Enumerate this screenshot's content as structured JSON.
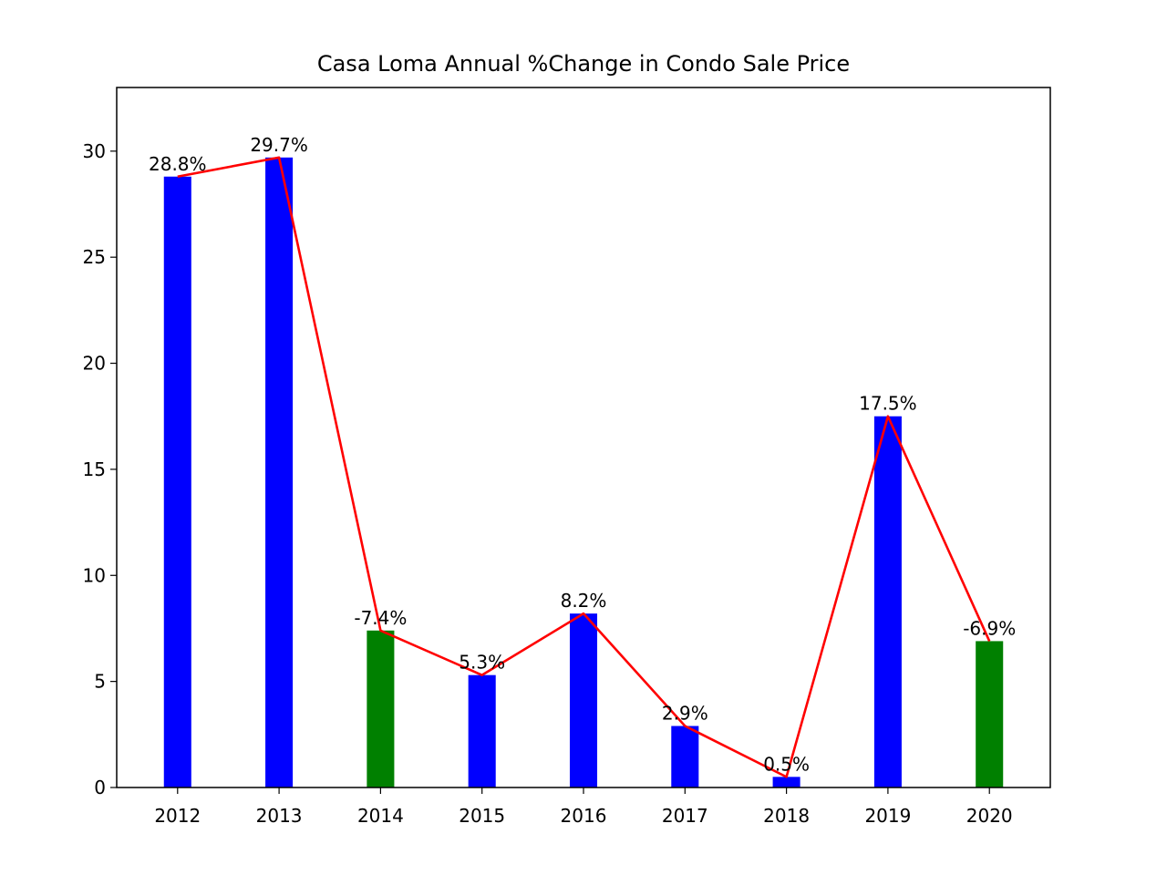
{
  "chart_data": {
    "type": "bar",
    "title": "Casa Loma Annual %Change in Condo Sale Price",
    "xlabel": "",
    "ylabel": "",
    "categories": [
      "2012",
      "2013",
      "2014",
      "2015",
      "2016",
      "2017",
      "2018",
      "2019",
      "2020"
    ],
    "values": [
      28.8,
      29.7,
      7.4,
      5.3,
      8.2,
      2.9,
      0.5,
      17.5,
      6.9
    ],
    "signed_change_labels": [
      "28.8%",
      "29.7%",
      "-7.4%",
      "5.3%",
      "8.2%",
      "2.9%",
      "0.5%",
      "17.5%",
      "-6.9%"
    ],
    "bar_colors": [
      "#0000ff",
      "#0000ff",
      "#008000",
      "#0000ff",
      "#0000ff",
      "#0000ff",
      "#0000ff",
      "#0000ff",
      "#008000"
    ],
    "line": {
      "values": [
        28.8,
        29.7,
        7.4,
        5.3,
        8.2,
        2.9,
        0.5,
        17.5,
        6.9
      ],
      "color": "#ff0000"
    },
    "ylim": [
      0,
      33
    ],
    "yticks": [
      0,
      5,
      10,
      15,
      20,
      25,
      30
    ],
    "grid": false,
    "legend": "none"
  }
}
